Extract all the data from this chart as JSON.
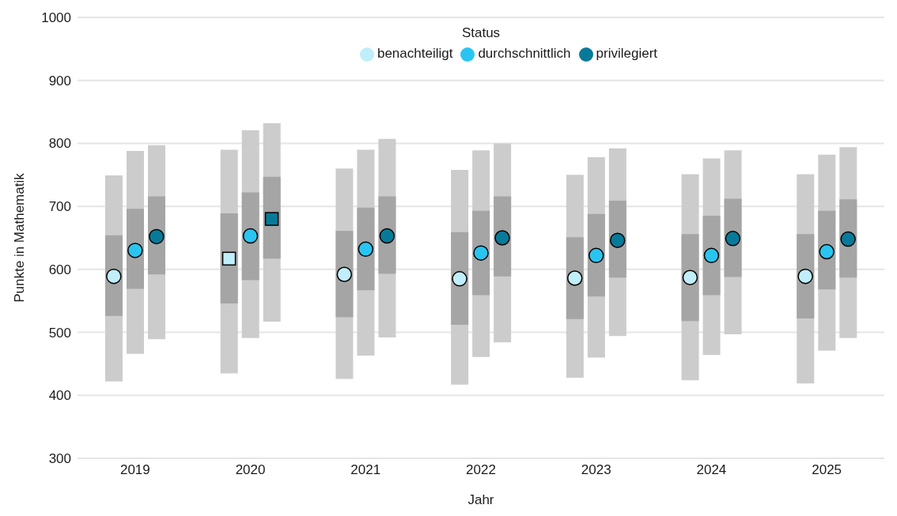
{
  "chart_data": {
    "type": "bar",
    "xlabel": "Jahr",
    "ylabel": "Punkte in Mathematik",
    "legend_title": "Status",
    "legend": "top",
    "grid": "y",
    "categories": [
      "2019",
      "2020",
      "2021",
      "2022",
      "2023",
      "2024",
      "2025"
    ],
    "ylim": [
      300,
      1000
    ],
    "yticks": [
      300,
      400,
      500,
      600,
      700,
      800,
      900,
      1000
    ],
    "series": [
      {
        "color": "#cccccc",
        "base": [
          422,
          435,
          426,
          417,
          428,
          424,
          419
        ],
        "values": [
          327,
          355,
          334,
          341,
          322,
          327,
          332
        ]
      },
      {
        "color": "#cccccc",
        "base": [
          466,
          491,
          463,
          461,
          460,
          464,
          471
        ],
        "values": [
          322,
          330,
          327,
          328,
          318,
          312,
          311
        ]
      },
      {
        "color": "#cccccc",
        "base": [
          489,
          517,
          492,
          484,
          494,
          497,
          491
        ],
        "values": [
          308,
          315,
          315,
          316,
          298,
          292,
          303
        ]
      },
      {
        "color": "#a5a5a5",
        "base": [
          526,
          546,
          524,
          512,
          521,
          518,
          522
        ],
        "values": [
          128,
          143,
          137,
          147,
          130,
          138,
          134
        ]
      },
      {
        "color": "#a5a5a5",
        "base": [
          569,
          583,
          567,
          559,
          557,
          559,
          568
        ],
        "values": [
          127,
          139,
          131,
          134,
          131,
          126,
          125
        ]
      },
      {
        "color": "#a5a5a5",
        "base": [
          592,
          617,
          593,
          589,
          587,
          588,
          587
        ],
        "values": [
          124,
          130,
          123,
          127,
          122,
          124,
          124
        ]
      },
      {
        "type": "scatter",
        "marker": "circle",
        "name": "benachteiligt",
        "color": "#c0eefa",
        "values": [
          589,
          null,
          592,
          585,
          586,
          587,
          589
        ]
      },
      {
        "type": "scatter",
        "marker": "circle",
        "name": "durchschnittlich",
        "color": "#29c5f0",
        "values": [
          630,
          653,
          632,
          626,
          622,
          622,
          628
        ]
      },
      {
        "type": "scatter",
        "marker": "circle",
        "name": "privilegiert",
        "color": "#087a99",
        "values": [
          652,
          null,
          653,
          650,
          646,
          649,
          648
        ]
      },
      {
        "type": "scatter",
        "marker": "square",
        "color": "#c0eefa",
        "values": [
          null,
          617,
          null,
          null,
          null,
          null,
          null
        ]
      },
      {
        "type": "scatter",
        "marker": "square",
        "color": "#087a99",
        "values": [
          null,
          680,
          null,
          null,
          null,
          null,
          null
        ]
      }
    ]
  }
}
